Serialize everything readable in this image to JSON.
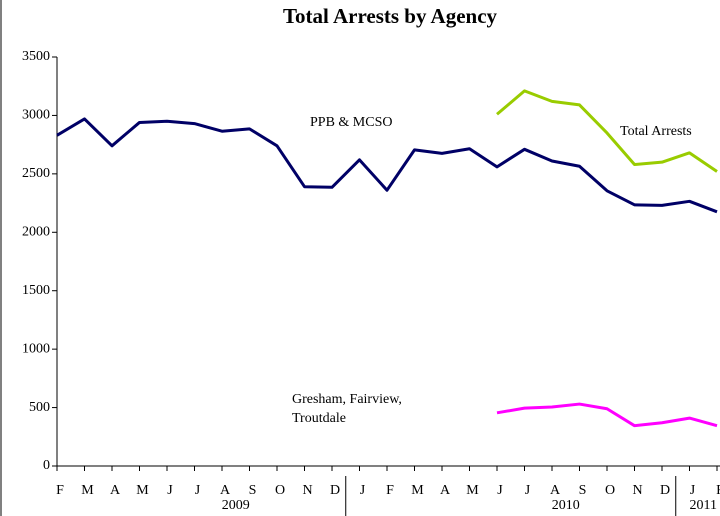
{
  "chart_data": {
    "type": "line",
    "title": "Total Arrests by Agency",
    "categories": [
      "F",
      "M",
      "A",
      "M",
      "J",
      "J",
      "A",
      "S",
      "O",
      "N",
      "D",
      "J",
      "F",
      "M",
      "A",
      "M",
      "J",
      "J",
      "A",
      "S",
      "O",
      "N",
      "D",
      "J",
      "F"
    ],
    "years": [
      "2009",
      "2010",
      "2011"
    ],
    "series": [
      {
        "name": "PPB & MCSO",
        "color": "#000066",
        "values": [
          2830,
          2970,
          2740,
          2940,
          2950,
          2930,
          2865,
          2885,
          2740,
          2390,
          2385,
          2620,
          2360,
          2705,
          2675,
          2715,
          2560,
          2710,
          2610,
          2565,
          2355,
          2235,
          2230,
          2265,
          2175
        ]
      },
      {
        "name": "Total Arrests",
        "color": "#99cc00",
        "values": [
          null,
          null,
          null,
          null,
          null,
          null,
          null,
          null,
          null,
          null,
          null,
          null,
          null,
          null,
          null,
          null,
          3010,
          3210,
          3120,
          3090,
          2850,
          2580,
          2600,
          2680,
          2520
        ]
      },
      {
        "name": [
          "Gresham, Fairview,",
          "Troutdale"
        ],
        "color": "#ff00ff",
        "values": [
          null,
          null,
          null,
          null,
          null,
          null,
          null,
          null,
          null,
          null,
          null,
          null,
          null,
          null,
          null,
          null,
          455,
          495,
          505,
          530,
          490,
          345,
          370,
          410,
          345
        ]
      }
    ],
    "ylim": [
      0,
      3500
    ],
    "yticks": [
      0,
      500,
      1000,
      1500,
      2000,
      2500,
      3000,
      3500
    ]
  }
}
